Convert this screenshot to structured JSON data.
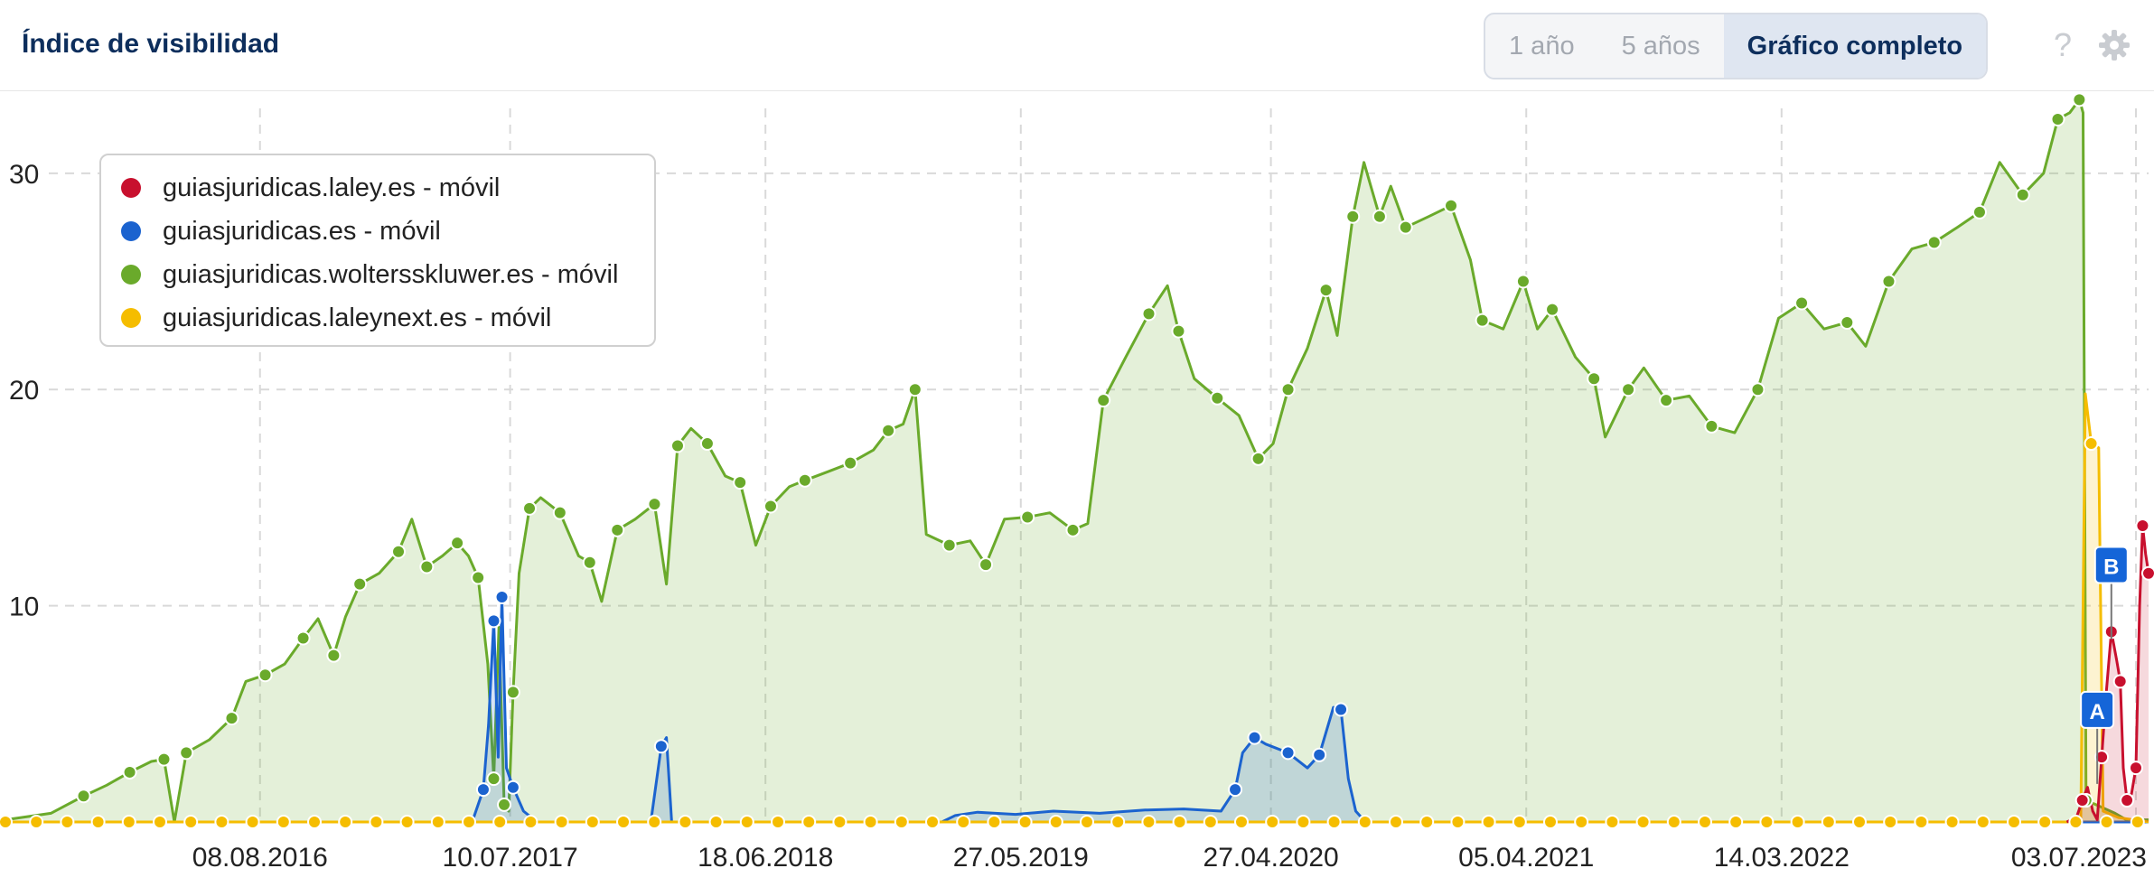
{
  "header": {
    "title": "Índice de visibilidad",
    "ranges": [
      {
        "label": "1 año",
        "active": false
      },
      {
        "label": "5 años",
        "active": false
      },
      {
        "label": "Gráfico completo",
        "active": true
      }
    ],
    "help_icon": "question-icon",
    "settings_icon": "gear-icon"
  },
  "chart_data": {
    "type": "area",
    "title": "Índice de visibilidad",
    "ylim": [
      0,
      33
    ],
    "yticks": [
      10,
      20,
      30
    ],
    "xrange": [
      "2015-09-01",
      "2023-07-20"
    ],
    "xtick_labels": [
      "08.08.2016",
      "10.07.2017",
      "18.06.2018",
      "27.05.2019",
      "27.04.2020",
      "05.04.2021",
      "14.03.2022",
      "03.07.2023"
    ],
    "grid": true,
    "legend_position": "top-left",
    "series": [
      {
        "name": "guiasjuridicas.laley.es - móvil",
        "color": "#c8102e",
        "points": [
          [
            "2023-04-01",
            0
          ],
          [
            "2023-04-14",
            0.2
          ],
          [
            "2023-04-22",
            1.0
          ],
          [
            "2023-04-29",
            1.6
          ],
          [
            "2023-05-06",
            0.5
          ],
          [
            "2023-05-12",
            0.1
          ],
          [
            "2023-05-18",
            3.0
          ],
          [
            "2023-05-24",
            5.9
          ],
          [
            "2023-05-31",
            8.8
          ],
          [
            "2023-06-07",
            7.5
          ],
          [
            "2023-06-12",
            6.5
          ],
          [
            "2023-06-16",
            2.5
          ],
          [
            "2023-06-21",
            1.0
          ],
          [
            "2023-06-27",
            1.3
          ],
          [
            "2023-07-03",
            2.5
          ],
          [
            "2023-07-08",
            10.0
          ],
          [
            "2023-07-12",
            13.7
          ],
          [
            "2023-07-16",
            12.4
          ],
          [
            "2023-07-20",
            11.5
          ]
        ]
      },
      {
        "name": "guiasjuridicas.es - móvil",
        "color": "#1b63cf",
        "points": [
          [
            "2015-09-01",
            0
          ],
          [
            "2017-05-20",
            0
          ],
          [
            "2017-06-04",
            1.5
          ],
          [
            "2017-06-11",
            4.5
          ],
          [
            "2017-06-18",
            9.3
          ],
          [
            "2017-06-24",
            3.0
          ],
          [
            "2017-06-29",
            10.4
          ],
          [
            "2017-07-05",
            2.5
          ],
          [
            "2017-07-14",
            1.6
          ],
          [
            "2017-07-28",
            0.5
          ],
          [
            "2017-08-15",
            0
          ],
          [
            "2018-01-15",
            0
          ],
          [
            "2018-01-29",
            3.5
          ],
          [
            "2018-02-05",
            3.9
          ],
          [
            "2018-02-12",
            0
          ],
          [
            "2019-02-10",
            0
          ],
          [
            "2019-02-28",
            0.3
          ],
          [
            "2019-03-30",
            0.45
          ],
          [
            "2019-05-20",
            0.35
          ],
          [
            "2019-07-10",
            0.5
          ],
          [
            "2019-09-10",
            0.4
          ],
          [
            "2019-11-10",
            0.55
          ],
          [
            "2020-01-01",
            0.6
          ],
          [
            "2020-02-20",
            0.5
          ],
          [
            "2020-03-10",
            1.5
          ],
          [
            "2020-03-20",
            3.2
          ],
          [
            "2020-04-05",
            3.9
          ],
          [
            "2020-04-20",
            3.6
          ],
          [
            "2020-05-20",
            3.2
          ],
          [
            "2020-06-15",
            2.5
          ],
          [
            "2020-07-01",
            3.1
          ],
          [
            "2020-07-20",
            5.3
          ],
          [
            "2020-07-30",
            5.2
          ],
          [
            "2020-08-09",
            2.0
          ],
          [
            "2020-08-19",
            0.5
          ],
          [
            "2020-09-01",
            0
          ],
          [
            "2023-07-20",
            0
          ]
        ]
      },
      {
        "name": "guiasjuridicas.woltersskluwer.es - móvil",
        "color": "#6aaa2b",
        "points": [
          [
            "2015-09-01",
            0.1
          ],
          [
            "2015-11-01",
            0.4
          ],
          [
            "2015-12-15",
            1.2
          ],
          [
            "2016-01-15",
            1.7
          ],
          [
            "2016-02-15",
            2.3
          ],
          [
            "2016-03-15",
            2.8
          ],
          [
            "2016-04-01",
            2.9
          ],
          [
            "2016-04-15",
            0
          ],
          [
            "2016-05-01",
            3.2
          ],
          [
            "2016-06-01",
            3.8
          ],
          [
            "2016-07-01",
            4.8
          ],
          [
            "2016-07-20",
            6.5
          ],
          [
            "2016-08-15",
            6.8
          ],
          [
            "2016-09-10",
            7.3
          ],
          [
            "2016-10-05",
            8.5
          ],
          [
            "2016-10-25",
            9.4
          ],
          [
            "2016-11-15",
            7.7
          ],
          [
            "2016-12-01",
            9.5
          ],
          [
            "2016-12-20",
            11.0
          ],
          [
            "2017-01-15",
            11.5
          ],
          [
            "2017-02-10",
            12.5
          ],
          [
            "2017-02-28",
            14.0
          ],
          [
            "2017-03-20",
            11.8
          ],
          [
            "2017-04-10",
            12.3
          ],
          [
            "2017-04-30",
            12.9
          ],
          [
            "2017-05-15",
            12.3
          ],
          [
            "2017-05-28",
            11.3
          ],
          [
            "2017-06-10",
            7.3
          ],
          [
            "2017-06-18",
            2.0
          ],
          [
            "2017-06-25",
            9.0
          ],
          [
            "2017-07-02",
            0.8
          ],
          [
            "2017-07-08",
            0.5
          ],
          [
            "2017-07-14",
            6.0
          ],
          [
            "2017-07-22",
            11.5
          ],
          [
            "2017-08-05",
            14.5
          ],
          [
            "2017-08-20",
            15.0
          ],
          [
            "2017-09-15",
            14.3
          ],
          [
            "2017-10-10",
            12.3
          ],
          [
            "2017-10-25",
            12.0
          ],
          [
            "2017-11-10",
            10.2
          ],
          [
            "2017-12-01",
            13.5
          ],
          [
            "2017-12-25",
            14.0
          ],
          [
            "2018-01-20",
            14.7
          ],
          [
            "2018-02-05",
            11.0
          ],
          [
            "2018-02-20",
            17.4
          ],
          [
            "2018-03-10",
            18.2
          ],
          [
            "2018-04-01",
            17.5
          ],
          [
            "2018-04-25",
            16.0
          ],
          [
            "2018-05-15",
            15.7
          ],
          [
            "2018-06-05",
            12.8
          ],
          [
            "2018-06-25",
            14.6
          ],
          [
            "2018-07-20",
            15.5
          ],
          [
            "2018-08-10",
            15.8
          ],
          [
            "2018-09-10",
            16.2
          ],
          [
            "2018-10-10",
            16.6
          ],
          [
            "2018-11-10",
            17.2
          ],
          [
            "2018-11-30",
            18.1
          ],
          [
            "2018-12-20",
            18.4
          ],
          [
            "2019-01-05",
            20.0
          ],
          [
            "2019-01-20",
            13.3
          ],
          [
            "2019-02-20",
            12.8
          ],
          [
            "2019-03-20",
            13.0
          ],
          [
            "2019-04-10",
            11.9
          ],
          [
            "2019-05-05",
            14.0
          ],
          [
            "2019-06-05",
            14.1
          ],
          [
            "2019-07-05",
            14.3
          ],
          [
            "2019-08-05",
            13.5
          ],
          [
            "2019-08-25",
            13.8
          ],
          [
            "2019-09-15",
            19.5
          ],
          [
            "2019-10-15",
            21.5
          ],
          [
            "2019-11-15",
            23.5
          ],
          [
            "2019-12-10",
            24.8
          ],
          [
            "2019-12-25",
            22.7
          ],
          [
            "2020-01-15",
            20.5
          ],
          [
            "2020-02-15",
            19.6
          ],
          [
            "2020-03-15",
            18.8
          ],
          [
            "2020-04-10",
            16.8
          ],
          [
            "2020-04-30",
            17.5
          ],
          [
            "2020-05-20",
            20.0
          ],
          [
            "2020-06-15",
            21.9
          ],
          [
            "2020-07-10",
            24.6
          ],
          [
            "2020-07-25",
            22.5
          ],
          [
            "2020-08-15",
            28.0
          ],
          [
            "2020-08-30",
            30.5
          ],
          [
            "2020-09-20",
            28.0
          ],
          [
            "2020-10-05",
            29.4
          ],
          [
            "2020-10-25",
            27.5
          ],
          [
            "2020-11-25",
            28.0
          ],
          [
            "2020-12-25",
            28.5
          ],
          [
            "2021-01-20",
            26.0
          ],
          [
            "2021-02-05",
            23.2
          ],
          [
            "2021-03-05",
            22.8
          ],
          [
            "2021-04-01",
            25.0
          ],
          [
            "2021-04-20",
            22.8
          ],
          [
            "2021-05-10",
            23.7
          ],
          [
            "2021-06-10",
            21.5
          ],
          [
            "2021-07-05",
            20.5
          ],
          [
            "2021-07-20",
            17.8
          ],
          [
            "2021-08-20",
            20.0
          ],
          [
            "2021-09-10",
            21.0
          ],
          [
            "2021-10-10",
            19.5
          ],
          [
            "2021-11-10",
            19.7
          ],
          [
            "2021-12-10",
            18.3
          ],
          [
            "2022-01-10",
            18.0
          ],
          [
            "2022-02-10",
            20.0
          ],
          [
            "2022-03-10",
            23.3
          ],
          [
            "2022-04-10",
            24.0
          ],
          [
            "2022-05-10",
            22.8
          ],
          [
            "2022-06-10",
            23.1
          ],
          [
            "2022-07-05",
            22.0
          ],
          [
            "2022-08-05",
            25.0
          ],
          [
            "2022-09-05",
            26.5
          ],
          [
            "2022-10-05",
            26.8
          ],
          [
            "2022-11-05",
            27.5
          ],
          [
            "2022-12-05",
            28.2
          ],
          [
            "2023-01-01",
            30.5
          ],
          [
            "2023-02-01",
            29.0
          ],
          [
            "2023-03-01",
            30.0
          ],
          [
            "2023-03-20",
            32.5
          ],
          [
            "2023-04-05",
            32.8
          ],
          [
            "2023-04-18",
            33.4
          ],
          [
            "2023-04-23",
            32.8
          ],
          [
            "2023-04-27",
            1.0
          ],
          [
            "2023-05-10",
            0.8
          ],
          [
            "2023-06-05",
            0.4
          ],
          [
            "2023-06-20",
            0.1
          ],
          [
            "2023-07-20",
            0.1
          ]
        ]
      },
      {
        "name": "guiasjuridicas.laleynext.es - móvil",
        "color": "#f5bd00",
        "points": [
          [
            "2015-09-01",
            0
          ],
          [
            "2023-04-10",
            0
          ],
          [
            "2023-04-20",
            0.2
          ],
          [
            "2023-04-26",
            19.8
          ],
          [
            "2023-05-04",
            17.5
          ],
          [
            "2023-05-14",
            17.3
          ],
          [
            "2023-05-20",
            0.5
          ],
          [
            "2023-06-10",
            0.2
          ],
          [
            "2023-07-20",
            0
          ]
        ]
      }
    ],
    "annotations": [
      {
        "label": "A",
        "date": "2023-05-12",
        "value": 5.1
      },
      {
        "label": "B",
        "date": "2023-05-31",
        "value": 11.8
      }
    ]
  },
  "legend": {
    "items": [
      {
        "label": "guiasjuridicas.laley.es - móvil",
        "color": "#c8102e"
      },
      {
        "label": "guiasjuridicas.es - móvil",
        "color": "#1b63cf"
      },
      {
        "label": "guiasjuridicas.woltersskluwer.es - móvil",
        "color": "#6aaa2b"
      },
      {
        "label": "guiasjuridicas.laleynext.es - móvil",
        "color": "#f5bd00"
      }
    ]
  }
}
